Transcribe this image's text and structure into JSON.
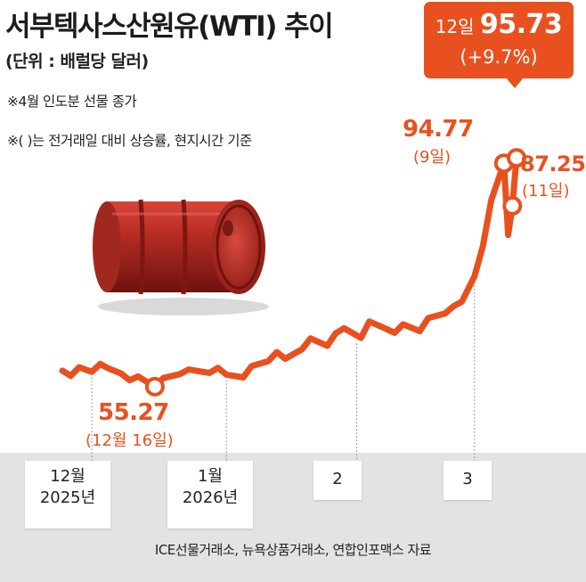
{
  "header": {
    "title": "서부텍사스산원유(WTI) 추이",
    "unit": "(단위 : 배럴당 달러)",
    "note1": "※4월 인도분 선물 종가",
    "note2": "※(    )는 전거래일 대비 상승률, 현지시간 기준"
  },
  "callout": {
    "day": "12일",
    "value": "95.73",
    "change": "(+9.7%)"
  },
  "labels": {
    "low": {
      "value": "55.27",
      "date": "(12월 16일)"
    },
    "p9": {
      "value": "94.77",
      "date": "(9일)"
    },
    "p11": {
      "value": "87.25",
      "date": "(11일)"
    }
  },
  "x_ticks": [
    {
      "line1": "12월",
      "line2": "2025년"
    },
    {
      "line1": "1월",
      "line2": "2026년"
    },
    {
      "line1": "2",
      "line2": ""
    },
    {
      "line1": "3",
      "line2": ""
    }
  ],
  "source": "ICE선물거래소, 뉴욕상품거래소, 연합인포맥스 자료",
  "colors": {
    "accent": "#e8511f",
    "band": "#e3e3e3"
  },
  "image": {
    "barrel": "red-oil-barrel"
  },
  "chart_data": {
    "type": "line",
    "title": "서부텍사스산원유(WTI) 추이",
    "ylabel": "(단위 : 배럴당 달러)",
    "x": [
      "2025-11-24",
      "2025-11-26",
      "2025-11-28",
      "2025-12-01",
      "2025-12-03",
      "2025-12-05",
      "2025-12-08",
      "2025-12-10",
      "2025-12-12",
      "2025-12-16",
      "2025-12-18",
      "2025-12-22",
      "2025-12-24",
      "2025-12-29",
      "2025-12-31",
      "2026-01-02",
      "2026-01-06",
      "2026-01-08",
      "2026-01-12",
      "2026-01-14",
      "2026-01-16",
      "2026-01-20",
      "2026-01-22",
      "2026-01-26",
      "2026-01-28",
      "2026-01-30",
      "2026-02-03",
      "2026-02-05",
      "2026-02-09",
      "2026-02-11",
      "2026-02-13",
      "2026-02-17",
      "2026-02-19",
      "2026-02-23",
      "2026-02-25",
      "2026-02-27",
      "2026-03-02",
      "2026-03-04",
      "2026-03-06",
      "2026-03-09",
      "2026-03-10",
      "2026-03-11",
      "2026-03-12"
    ],
    "values": [
      58.1,
      57.2,
      58.7,
      57.9,
      59.3,
      58.5,
      57.6,
      56.4,
      57.1,
      55.27,
      56.8,
      57.5,
      58.3,
      57.7,
      58.6,
      57.4,
      56.9,
      58.9,
      59.8,
      61.4,
      60.2,
      61.9,
      63.8,
      62.5,
      64.7,
      65.6,
      63.9,
      66.8,
      65.5,
      64.8,
      66.3,
      65.1,
      67.4,
      68.2,
      69.5,
      70.3,
      74.8,
      80.1,
      88.3,
      94.77,
      82.1,
      87.25,
      95.73
    ],
    "ylim": [
      48,
      100
    ]
  }
}
